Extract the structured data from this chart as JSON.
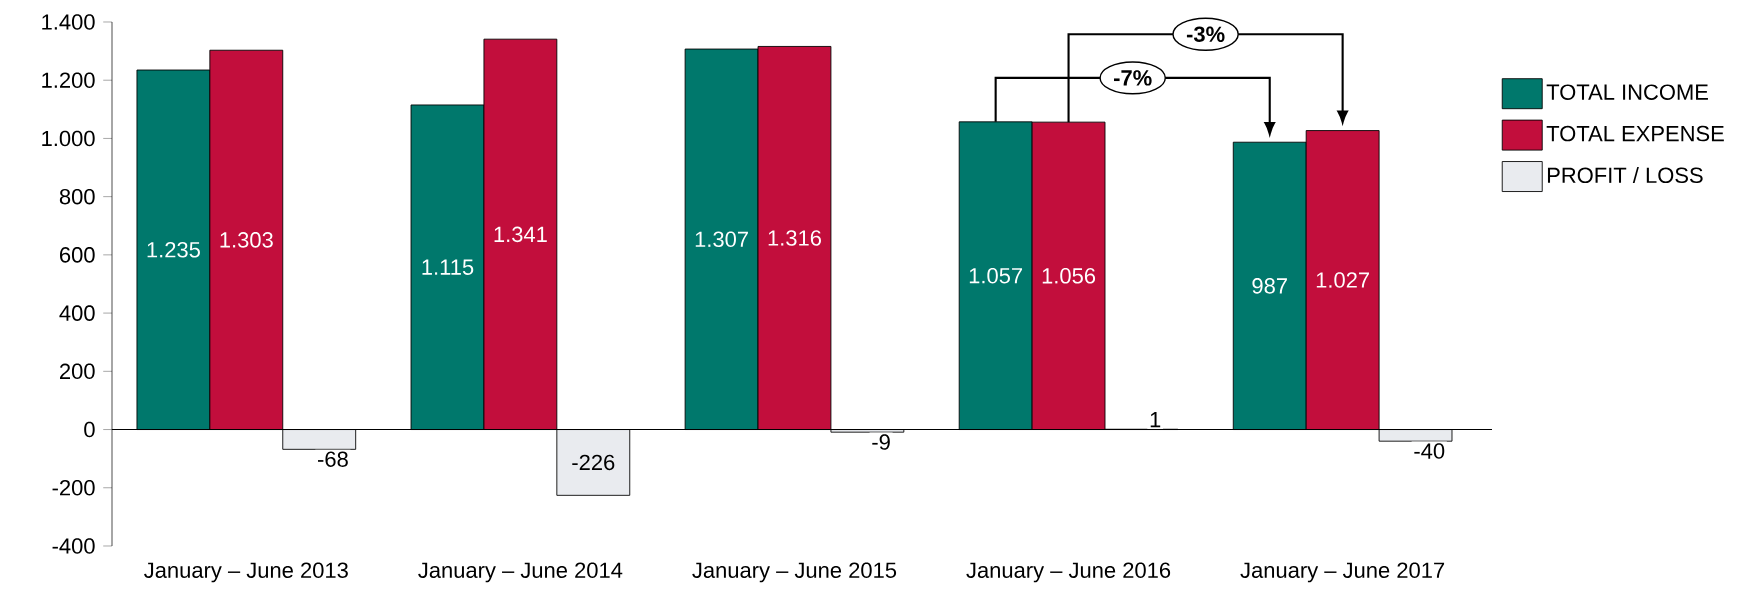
{
  "chart_data": {
    "type": "bar",
    "categories": [
      "January – June 2013",
      "January – June 2014",
      "January – June 2015",
      "January – June 2016",
      "January – June 2017"
    ],
    "series": [
      {
        "name": "TOTAL INCOME",
        "color": "#00786c",
        "values": [
          1235,
          1115,
          1307,
          1057,
          987
        ],
        "value_labels": [
          "1.235",
          "1.115",
          "1.307",
          "1.057",
          "987"
        ]
      },
      {
        "name": "TOTAL EXPENSE",
        "color": "#c20e3c",
        "values": [
          1303,
          1341,
          1316,
          1056,
          1027
        ],
        "value_labels": [
          "1.303",
          "1.341",
          "1.316",
          "1.056",
          "1.027"
        ]
      },
      {
        "name": "PROFIT / LOSS",
        "color": "#e9ebef",
        "values": [
          -68,
          -226,
          -9,
          1,
          -40
        ],
        "value_labels": [
          "-68",
          "-226",
          "-9",
          "1",
          "-40"
        ]
      }
    ],
    "ylim": [
      -400,
      1400
    ],
    "yticks": [
      {
        "value": -400,
        "label": "-400"
      },
      {
        "value": -200,
        "label": "-200"
      },
      0,
      {
        "value": 200,
        "label": "200"
      },
      {
        "value": 400,
        "label": "400"
      },
      {
        "value": 600,
        "label": "600"
      },
      {
        "value": 800,
        "label": "800"
      },
      {
        "value": 1000,
        "label": "1.000"
      },
      {
        "value": 1200,
        "label": "1.200"
      },
      {
        "value": 1400,
        "label": "1.400"
      }
    ],
    "legend": "right",
    "annotations": [
      "-7%",
      "-3%"
    ]
  }
}
